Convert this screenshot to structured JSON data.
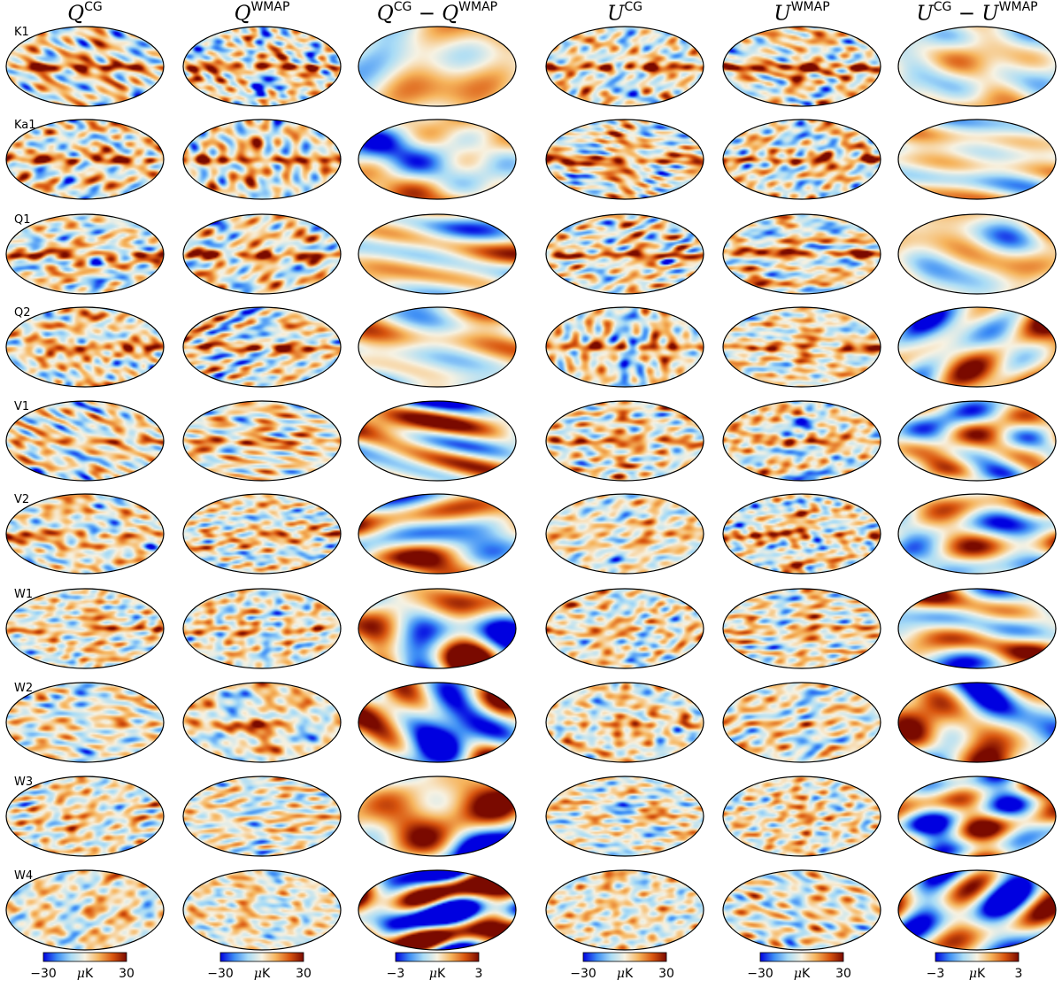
{
  "columns": [
    {
      "sym": "Q",
      "sup": "CG",
      "minus_sym": "",
      "minus_sup": "",
      "scale": "wide",
      "cbar": {
        "min": "−30",
        "unit": "μK",
        "max": "30"
      }
    },
    {
      "sym": "Q",
      "sup": "WMAP",
      "minus_sym": "",
      "minus_sup": "",
      "scale": "wide",
      "cbar": {
        "min": "−30",
        "unit": "μK",
        "max": "30"
      }
    },
    {
      "sym": "Q",
      "sup": "CG",
      "minus_sym": "Q",
      "minus_sup": "WMAP",
      "scale": "narrow",
      "cbar": {
        "min": "−3",
        "unit": "μK",
        "max": "3"
      }
    },
    {
      "sym": "U",
      "sup": "CG",
      "minus_sym": "",
      "minus_sup": "",
      "scale": "wide",
      "cbar": {
        "min": "−30",
        "unit": "μK",
        "max": "30"
      }
    },
    {
      "sym": "U",
      "sup": "WMAP",
      "minus_sym": "",
      "minus_sup": "",
      "scale": "wide",
      "cbar": {
        "min": "−30",
        "unit": "μK",
        "max": "30"
      }
    },
    {
      "sym": "U",
      "sup": "CG",
      "minus_sym": "U",
      "minus_sup": "WMAP",
      "scale": "narrow",
      "cbar": {
        "min": "−3",
        "unit": "μK",
        "max": "3"
      }
    }
  ],
  "rows": [
    "K1",
    "Ka1",
    "Q1",
    "Q2",
    "V1",
    "V2",
    "W1",
    "W2",
    "W3",
    "W4"
  ],
  "colormap": [
    "#0000e0",
    "#3d8ef5",
    "#a9dcf6",
    "#f7f2e2",
    "#f6b45c",
    "#d9560f",
    "#7a0a00"
  ]
}
